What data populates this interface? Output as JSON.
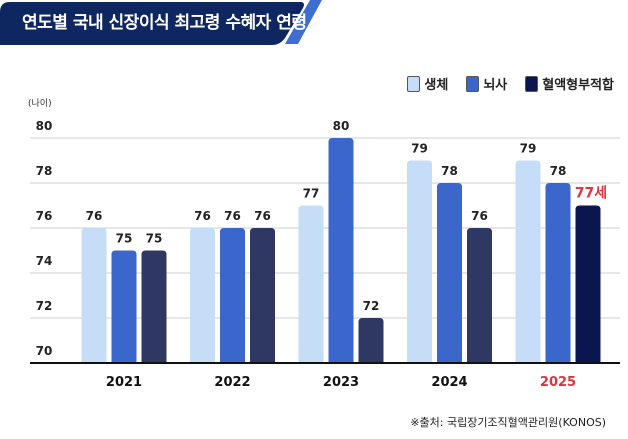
{
  "header": {
    "title": "연도별 국내 신장이식 최고령 수혜자 연령"
  },
  "source": "※출처: 국립장기조직혈액관리원(KONOS)",
  "colors": {
    "banner": "#0e2760",
    "accent": "#3e6fd0",
    "highlight": "#e0333a"
  },
  "chart_data": {
    "type": "bar",
    "ylabel": "(나이)",
    "ylim": [
      70,
      80
    ],
    "yticks": [
      70,
      72,
      74,
      76,
      78,
      80
    ],
    "grid": true,
    "legend_position": "top-right",
    "categories": [
      "2021",
      "2022",
      "2023",
      "2024",
      "2025"
    ],
    "highlight_category": "2025",
    "series": [
      {
        "name": "생체",
        "color": "#c6ddf8",
        "values": [
          76,
          76,
          77,
          79,
          79
        ]
      },
      {
        "name": "뇌사",
        "color": "#3b67cc",
        "values": [
          75,
          76,
          80,
          78,
          78
        ]
      },
      {
        "name": "혈액형부적합",
        "color": "#2e3862",
        "values": [
          75,
          76,
          72,
          76,
          77
        ]
      }
    ],
    "data_labels": [
      [
        "76",
        "76",
        "77",
        "79",
        "79"
      ],
      [
        "75",
        "76",
        "80",
        "78",
        "78"
      ],
      [
        "75",
        "76",
        "72",
        "76",
        "77세"
      ]
    ],
    "highlight_bar_color": "#0b1650"
  }
}
